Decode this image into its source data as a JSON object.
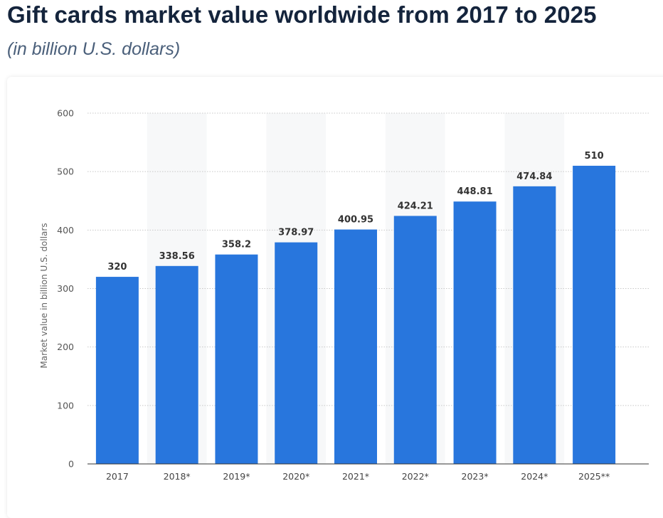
{
  "header": {
    "title": "Gift cards market value worldwide from 2017 to 2025",
    "subtitle": "(in billion U.S. dollars)"
  },
  "chart_data": {
    "type": "bar",
    "title": "",
    "xlabel": "",
    "ylabel": "Market value in billion U.S. dollars",
    "categories": [
      "2017",
      "2018*",
      "2019*",
      "2020*",
      "2021*",
      "2022*",
      "2023*",
      "2024*",
      "2025**"
    ],
    "values": [
      320,
      338.56,
      358.2,
      378.97,
      400.95,
      424.21,
      448.81,
      474.84,
      510
    ],
    "value_labels": [
      "320",
      "338.56",
      "358.2",
      "378.97",
      "400.95",
      "424.21",
      "448.81",
      "474.84",
      "510"
    ],
    "ylim": [
      0,
      600
    ],
    "yticks": [
      0,
      100,
      200,
      300,
      400,
      500,
      600
    ],
    "ytick_labels": [
      "0",
      "100",
      "200",
      "300",
      "400",
      "500",
      "600"
    ],
    "grid": true,
    "alternating_band": true,
    "legend": "none",
    "colors": {
      "bar": "#2876dd",
      "band": "#f7f8f9",
      "grid": "#c8c8c8",
      "axis": "#333333"
    }
  }
}
